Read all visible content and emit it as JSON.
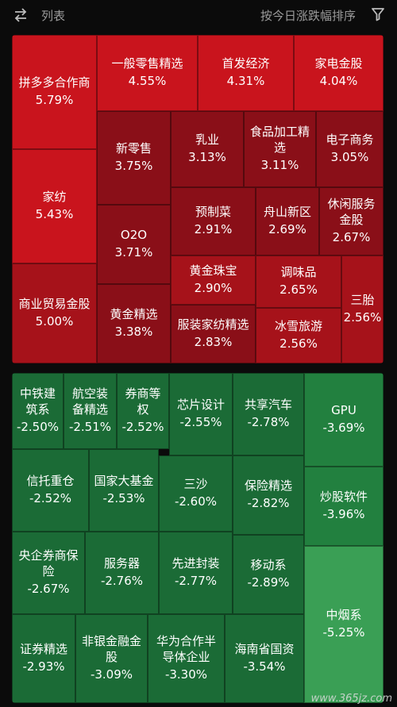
{
  "header": {
    "view_label": "列表",
    "sort_label": "按今日涨跌幅排序",
    "swap_icon": "swap-icon",
    "filter_icon": "filter-icon"
  },
  "colors": {
    "up_strong": "#c9141d",
    "up_mid": "#a6121a",
    "up_weak": "#8a0f18",
    "down_weak": "#1b6b36",
    "down_mid": "#22803f",
    "down_strong": "#3a9f55"
  },
  "gainers": [
    {
      "name": "拼多多合作商",
      "change": "5.79%"
    },
    {
      "name": "一般零售精选",
      "change": "4.55%"
    },
    {
      "name": "首发经济",
      "change": "4.31%"
    },
    {
      "name": "家电金股",
      "change": "4.04%"
    },
    {
      "name": "家纺",
      "change": "5.43%"
    },
    {
      "name": "新零售",
      "change": "3.75%"
    },
    {
      "name": "乳业",
      "change": "3.13%"
    },
    {
      "name": "食品加工精选",
      "change": "3.11%"
    },
    {
      "name": "电子商务",
      "change": "3.05%"
    },
    {
      "name": "预制菜",
      "change": "2.91%"
    },
    {
      "name": "舟山新区",
      "change": "2.69%"
    },
    {
      "name": "休闲服务金股",
      "change": "2.67%"
    },
    {
      "name": "O2O",
      "change": "3.71%"
    },
    {
      "name": "黄金珠宝",
      "change": "2.90%"
    },
    {
      "name": "调味品",
      "change": "2.65%"
    },
    {
      "name": "商业贸易金股",
      "change": "5.00%"
    },
    {
      "name": "黄金精选",
      "change": "3.38%"
    },
    {
      "name": "服装家纺精选",
      "change": "2.83%"
    },
    {
      "name": "冰雪旅游",
      "change": "2.56%"
    },
    {
      "name": "三胎",
      "change": "2.56%"
    }
  ],
  "losers": [
    {
      "name": "中铁建筑系",
      "change": "-2.50%"
    },
    {
      "name": "航空装备精选",
      "change": "-2.51%"
    },
    {
      "name": "券商等权",
      "change": "-2.52%"
    },
    {
      "name": "芯片设计",
      "change": "-2.55%"
    },
    {
      "name": "共享汽车",
      "change": "-2.78%"
    },
    {
      "name": "GPU",
      "change": "-3.69%"
    },
    {
      "name": "信托重仓",
      "change": "-2.52%"
    },
    {
      "name": "国家大基金",
      "change": "-2.53%"
    },
    {
      "name": "三沙",
      "change": "-2.60%"
    },
    {
      "name": "保险精选",
      "change": "-2.82%"
    },
    {
      "name": "炒股软件",
      "change": "-3.96%"
    },
    {
      "name": "央企券商保险",
      "change": "-2.67%"
    },
    {
      "name": "服务器",
      "change": "-2.76%"
    },
    {
      "name": "先进封装",
      "change": "-2.77%"
    },
    {
      "name": "移动系",
      "change": "-2.89%"
    },
    {
      "name": "证券精选",
      "change": "-2.93%"
    },
    {
      "name": "非银金融金股",
      "change": "-3.09%"
    },
    {
      "name": "华为合作半导体企业",
      "change": "-3.30%"
    },
    {
      "name": "海南省国资",
      "change": "-3.54%"
    },
    {
      "name": "中烟系",
      "change": "-5.25%"
    }
  ],
  "watermark": "www.365jz.com"
}
